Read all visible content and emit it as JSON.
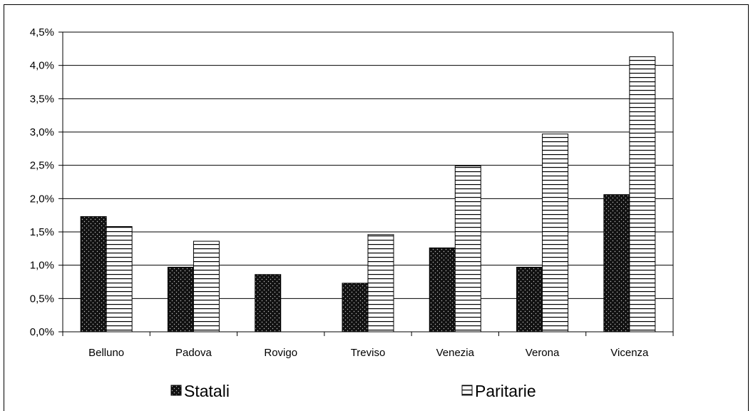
{
  "chart_data": {
    "type": "bar",
    "categories": [
      "Belluno",
      "Padova",
      "Rovigo",
      "Treviso",
      "Venezia",
      "Verona",
      "Vicenza"
    ],
    "series": [
      {
        "name": "Statali",
        "values": [
          1.73,
          0.97,
          0.86,
          0.73,
          1.26,
          0.97,
          2.06
        ]
      },
      {
        "name": "Paritarie",
        "values": [
          1.58,
          1.36,
          0.0,
          1.46,
          2.49,
          2.97,
          4.13
        ]
      }
    ],
    "ylim": [
      0,
      4.5
    ],
    "y_ticks": [
      0.0,
      0.5,
      1.0,
      1.5,
      2.0,
      2.5,
      3.0,
      3.5,
      4.0,
      4.5
    ],
    "y_tick_labels": [
      "0,0%",
      "0,5%",
      "1,0%",
      "1,5%",
      "2,0%",
      "2,5%",
      "3,0%",
      "3,5%",
      "4,0%",
      "4,5%"
    ],
    "grid": true,
    "legend_position": "bottom",
    "series_patterns": [
      "dotted-dark",
      "horizontal-lines"
    ]
  }
}
